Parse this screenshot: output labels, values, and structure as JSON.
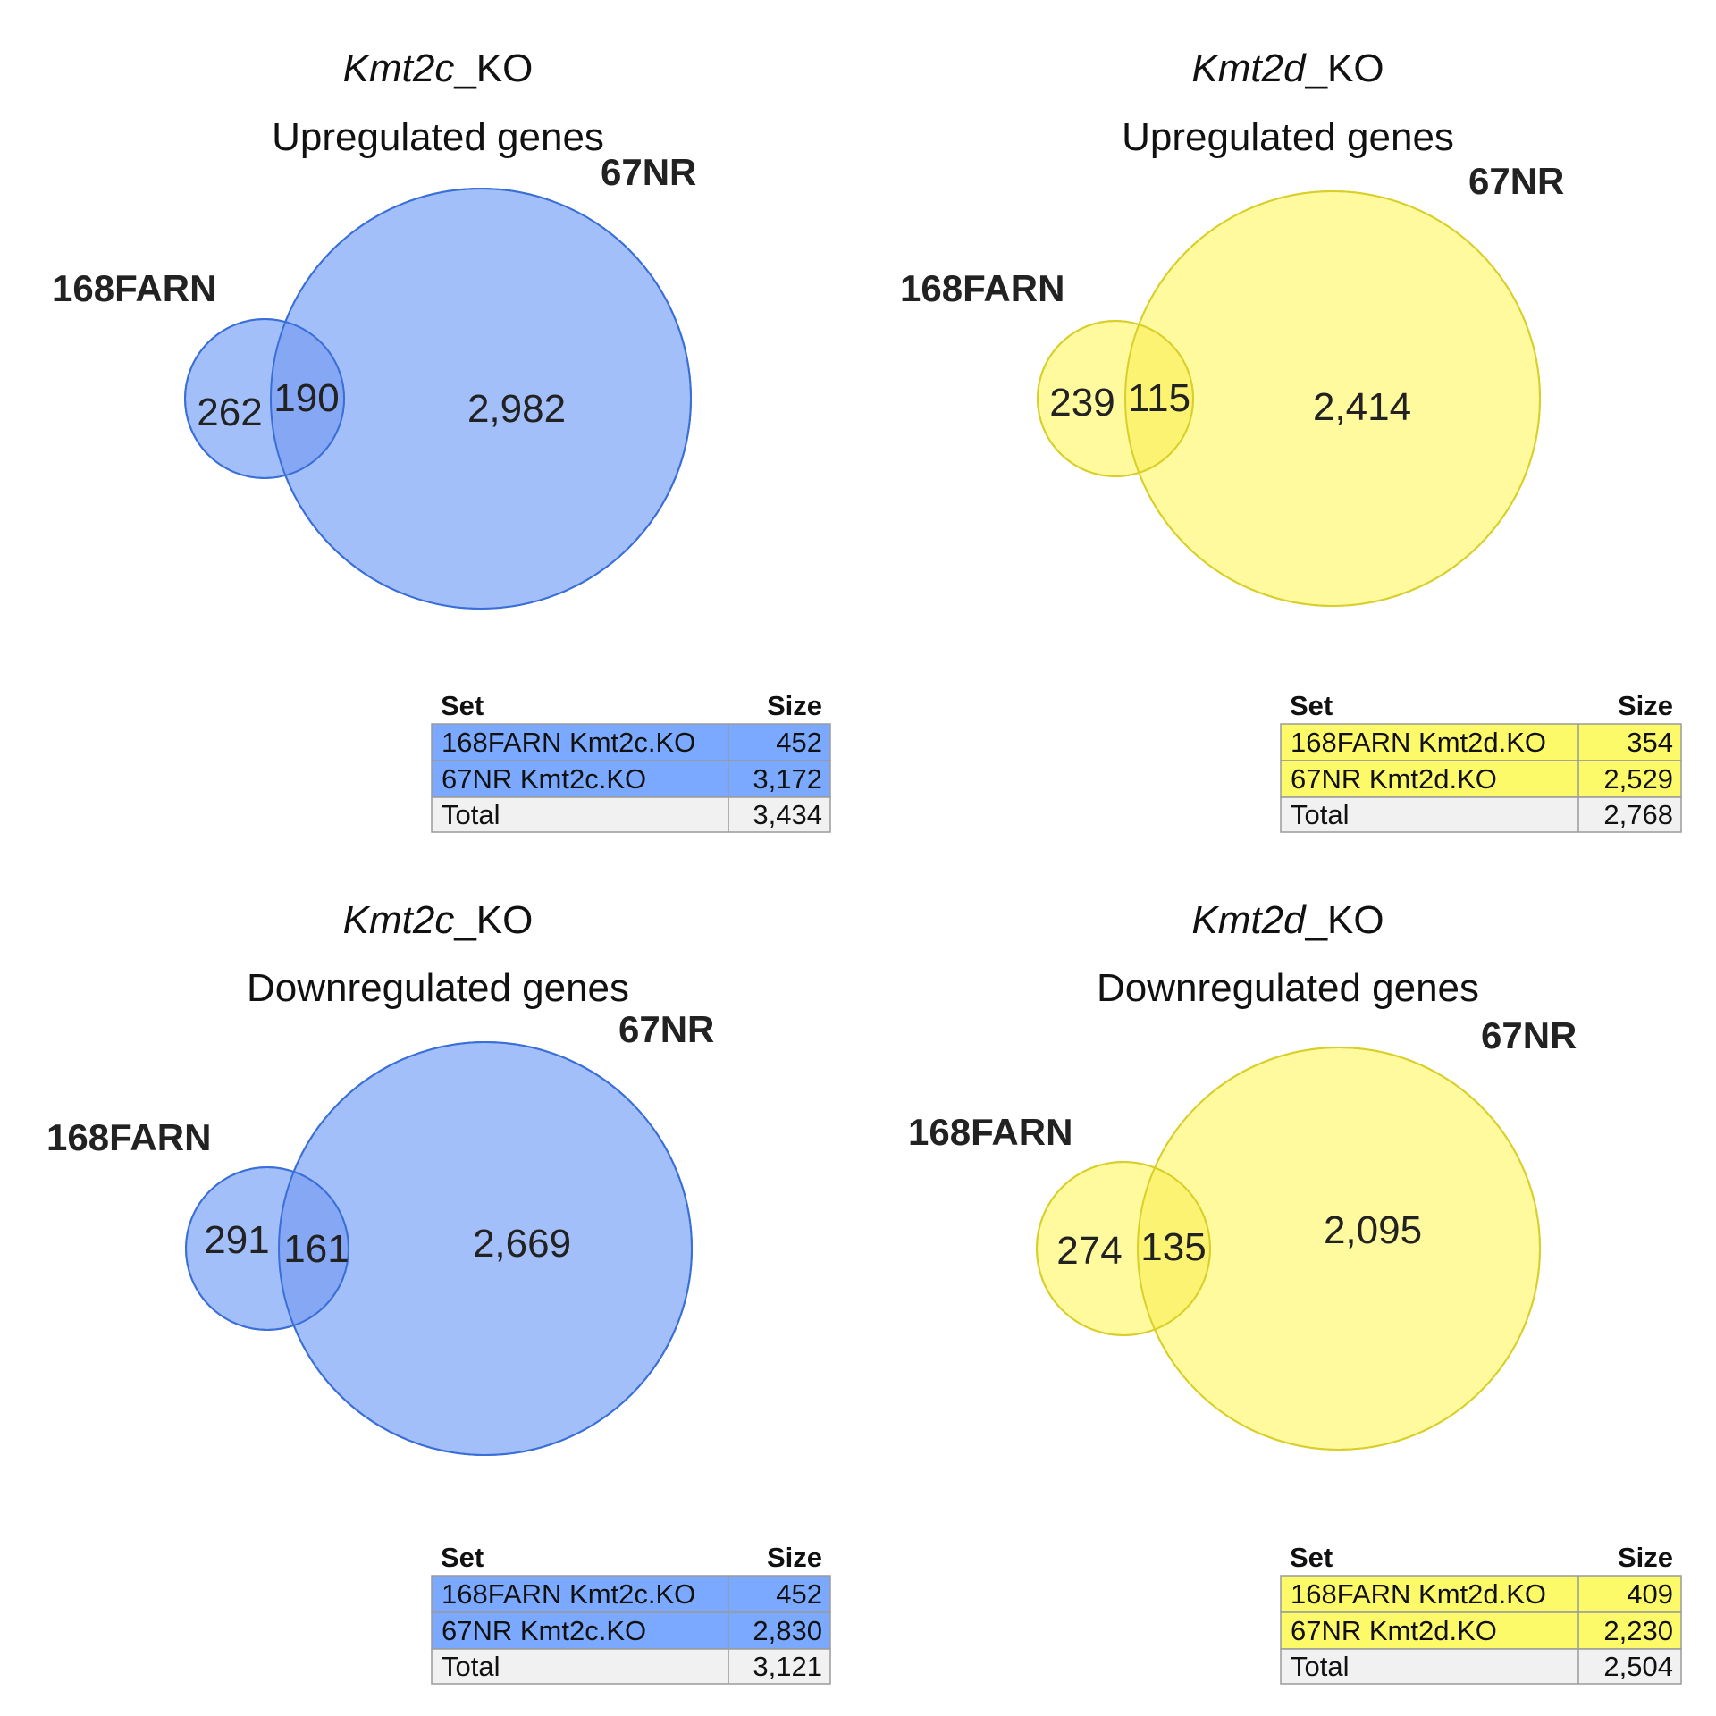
{
  "table_headers": {
    "set": "Set",
    "size": "Size"
  },
  "panels": [
    {
      "gene": "Kmt2c",
      "suffix": "_KO",
      "subtitle": "Upregulated genes",
      "fill": "#a3bffa",
      "stroke": "#3a6fd8",
      "overlap_fill": "#86a8f4",
      "table_fill": "#7aa9ff",
      "set_a_label": "168FARN",
      "set_b_label": "67NR",
      "only_a": "262",
      "both": "190",
      "only_b": "2,982",
      "rows": [
        {
          "set": "168FARN Kmt2c.KO",
          "size": "452"
        },
        {
          "set": "67NR Kmt2c.KO",
          "size": "3,172"
        }
      ],
      "total": {
        "set": "Total",
        "size": "3,434"
      }
    },
    {
      "gene": "Kmt2d",
      "suffix": "_KO",
      "subtitle": "Upregulated genes",
      "fill": "#fffa9e",
      "stroke": "#d9cf2a",
      "overlap_fill": "#fbf371",
      "table_fill": "#fdfa6a",
      "set_a_label": "168FARN",
      "set_b_label": "67NR",
      "only_a": "239",
      "both": "115",
      "only_b": "2,414",
      "rows": [
        {
          "set": "168FARN Kmt2d.KO",
          "size": "354"
        },
        {
          "set": "67NR Kmt2d.KO",
          "size": "2,529"
        }
      ],
      "total": {
        "set": "Total",
        "size": "2,768"
      }
    },
    {
      "gene": "Kmt2c",
      "suffix": "_KO",
      "subtitle": "Downregulated genes",
      "fill": "#a3bffa",
      "stroke": "#3a6fd8",
      "overlap_fill": "#86a8f4",
      "table_fill": "#7aa9ff",
      "set_a_label": "168FARN",
      "set_b_label": "67NR",
      "only_a": "291",
      "both": "161",
      "only_b": "2,669",
      "rows": [
        {
          "set": "168FARN Kmt2c.KO",
          "size": "452"
        },
        {
          "set": "67NR Kmt2c.KO",
          "size": "2,830"
        }
      ],
      "total": {
        "set": "Total",
        "size": "3,121"
      }
    },
    {
      "gene": "Kmt2d",
      "suffix": "_KO",
      "subtitle": "Downregulated genes",
      "fill": "#fffa9e",
      "stroke": "#d9cf2a",
      "overlap_fill": "#fbf371",
      "table_fill": "#fdfa6a",
      "set_a_label": "168FARN",
      "set_b_label": "67NR",
      "only_a": "274",
      "both": "135",
      "only_b": "2,095",
      "rows": [
        {
          "set": "168FARN Kmt2d.KO",
          "size": "409"
        },
        {
          "set": "67NR Kmt2d.KO",
          "size": "2,230"
        }
      ],
      "total": {
        "set": "Total",
        "size": "2,504"
      }
    }
  ]
}
